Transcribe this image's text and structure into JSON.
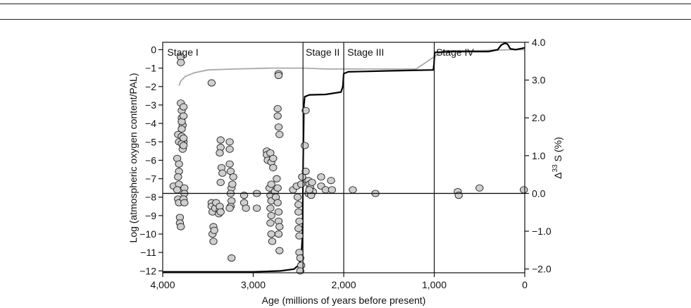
{
  "chart_data": {
    "type": "scatter",
    "xlabel": "Age (millions of years before present)",
    "ylabel_left": "Log (atmospheric oxygen content/PAL)",
    "ylabel_right_prefix": "Δ",
    "ylabel_right_sup": "33",
    "ylabel_right_suffix": " S (%)",
    "xlim": [
      4000,
      0
    ],
    "ylim_left": [
      -12.1,
      0.4
    ],
    "ylim_right": [
      -2.1,
      4.0
    ],
    "x_reversed": true,
    "grid": false,
    "x_ticks": [
      {
        "value": 4000,
        "label": "4,000"
      },
      {
        "value": 3000,
        "label": "3,000"
      },
      {
        "value": 2000,
        "label": "2,000"
      },
      {
        "value": 1000,
        "label": "1,000"
      },
      {
        "value": 0,
        "label": "0"
      }
    ],
    "y_left_ticks": [
      {
        "value": 0,
        "label": "0"
      },
      {
        "value": -1,
        "label": "−1"
      },
      {
        "value": -2,
        "label": "−2"
      },
      {
        "value": -3,
        "label": "−3"
      },
      {
        "value": -4,
        "label": "−4"
      },
      {
        "value": -5,
        "label": "−5"
      },
      {
        "value": -6,
        "label": "−6"
      },
      {
        "value": -7,
        "label": "−7"
      },
      {
        "value": -8,
        "label": "−8"
      },
      {
        "value": -9,
        "label": "−9"
      },
      {
        "value": -10,
        "label": "−10"
      },
      {
        "value": -11,
        "label": "−11"
      },
      {
        "value": -12,
        "label": "−12"
      }
    ],
    "y_right_ticks": [
      {
        "value": 4.0,
        "label": "4.0"
      },
      {
        "value": 3.0,
        "label": "3.0"
      },
      {
        "value": 2.0,
        "label": "2.0"
      },
      {
        "value": 1.0,
        "label": "1.0"
      },
      {
        "value": 0.0,
        "label": "0.0"
      },
      {
        "value": -1.0,
        "label": "−1.0"
      },
      {
        "value": -2.0,
        "label": "−2.0"
      }
    ],
    "stage_boundaries": [
      2450,
      2000,
      1000
    ],
    "stages": [
      {
        "label": "Stage I",
        "x": 3950
      },
      {
        "label": "Stage II",
        "x": 2420
      },
      {
        "label": "Stage III",
        "x": 1960
      },
      {
        "label": "Stage IV",
        "x": 980
      }
    ],
    "zero_line_d33s": 0.0,
    "oxygen_curve": [
      [
        4000,
        -12.05
      ],
      [
        3000,
        -12.05
      ],
      [
        2700,
        -12.0
      ],
      [
        2550,
        -11.9
      ],
      [
        2500,
        -11.7
      ],
      [
        2470,
        -11.3
      ],
      [
        2455,
        -10.0
      ],
      [
        2448,
        -6.0
      ],
      [
        2440,
        -3.0
      ],
      [
        2430,
        -2.55
      ],
      [
        2380,
        -2.45
      ],
      [
        2200,
        -2.43
      ],
      [
        2030,
        -2.3
      ],
      [
        2010,
        -2.0
      ],
      [
        2000,
        -1.3
      ],
      [
        1950,
        -1.2
      ],
      [
        1500,
        -1.15
      ],
      [
        1010,
        -1.1
      ],
      [
        1003,
        -0.8
      ],
      [
        995,
        -0.15
      ],
      [
        800,
        -0.1
      ],
      [
        400,
        -0.1
      ],
      [
        300,
        0.0
      ],
      [
        260,
        0.25
      ],
      [
        220,
        0.35
      ],
      [
        190,
        0.3
      ],
      [
        160,
        0.05
      ],
      [
        100,
        0.0
      ],
      [
        0,
        0.1
      ]
    ],
    "gray_curve": [
      [
        3820,
        -1.95
      ],
      [
        3800,
        -1.7
      ],
      [
        3750,
        -1.45
      ],
      [
        3650,
        -1.25
      ],
      [
        3500,
        -1.1
      ],
      [
        3200,
        -1.05
      ],
      [
        2800,
        -1.0
      ],
      [
        2450,
        -1.0
      ],
      [
        2200,
        -1.05
      ],
      [
        2000,
        -1.05
      ],
      [
        1600,
        -1.05
      ],
      [
        1200,
        -1.05
      ],
      [
        900,
        -0.05
      ],
      [
        500,
        -0.05
      ],
      [
        150,
        0.0
      ],
      [
        0,
        0.0
      ]
    ],
    "d33s_points": [
      [
        3880,
        -7.4
      ],
      [
        3830,
        -4.6
      ],
      [
        3820,
        -5.0
      ],
      [
        3840,
        -5.9
      ],
      [
        3820,
        -6.2
      ],
      [
        3820,
        -6.6
      ],
      [
        3830,
        -6.9
      ],
      [
        3820,
        -7.3
      ],
      [
        3840,
        -7.6
      ],
      [
        3830,
        -8.1
      ],
      [
        3820,
        -8.3
      ],
      [
        3810,
        -9.1
      ],
      [
        3810,
        -9.4
      ],
      [
        3800,
        -9.6
      ],
      [
        3800,
        -0.4
      ],
      [
        3800,
        -0.7
      ],
      [
        3800,
        -2.9
      ],
      [
        3790,
        -3.3
      ],
      [
        3790,
        -3.7
      ],
      [
        3780,
        -4.1
      ],
      [
        3790,
        -4.3
      ],
      [
        3790,
        -3.9
      ],
      [
        3770,
        -3.6
      ],
      [
        3770,
        -3.1
      ],
      [
        3790,
        -4.7
      ],
      [
        3770,
        -5.0
      ],
      [
        3790,
        -5.1
      ],
      [
        3780,
        -5.4
      ],
      [
        3770,
        -5.2
      ],
      [
        3770,
        -4.8
      ],
      [
        3760,
        -7.5
      ],
      [
        3760,
        -7.8
      ],
      [
        3770,
        -8.1
      ],
      [
        3760,
        -8.3
      ],
      [
        3460,
        -1.8
      ],
      [
        3460,
        -8.3
      ],
      [
        3460,
        -8.5
      ],
      [
        3450,
        -8.8
      ],
      [
        3440,
        -9.6
      ],
      [
        3450,
        -10.0
      ],
      [
        3440,
        -10.4
      ],
      [
        3430,
        -9.8
      ],
      [
        3420,
        -8.6
      ],
      [
        3410,
        -8.3
      ],
      [
        3380,
        -8.9
      ],
      [
        3370,
        -8.7
      ],
      [
        3370,
        -8.5
      ],
      [
        3360,
        -8.8
      ],
      [
        3360,
        -4.9
      ],
      [
        3360,
        -5.3
      ],
      [
        3370,
        -5.6
      ],
      [
        3350,
        -6.4
      ],
      [
        3340,
        -6.7
      ],
      [
        3360,
        -7.2
      ],
      [
        3260,
        -5.0
      ],
      [
        3260,
        -5.4
      ],
      [
        3260,
        -6.2
      ],
      [
        3250,
        -6.6
      ],
      [
        3240,
        -7.5
      ],
      [
        3250,
        -7.8
      ],
      [
        3240,
        -8.2
      ],
      [
        3250,
        -8.5
      ],
      [
        3260,
        -8.6
      ],
      [
        3240,
        -11.3
      ],
      [
        3230,
        -7.3
      ],
      [
        3220,
        -6.9
      ],
      [
        3100,
        -7.9
      ],
      [
        3100,
        -8.3
      ],
      [
        3080,
        -8.6
      ],
      [
        2960,
        -7.8
      ],
      [
        2960,
        -8.6
      ],
      [
        2850,
        -5.5
      ],
      [
        2850,
        -5.7
      ],
      [
        2840,
        -6.0
      ],
      [
        2810,
        -5.6
      ],
      [
        2800,
        -6.1
      ],
      [
        2780,
        -6.4
      ],
      [
        2780,
        -5.9
      ],
      [
        2820,
        -7.5
      ],
      [
        2810,
        -7.9
      ],
      [
        2800,
        -8.2
      ],
      [
        2810,
        -8.6
      ],
      [
        2800,
        -9.0
      ],
      [
        2810,
        -9.4
      ],
      [
        2800,
        -10.0
      ],
      [
        2790,
        -10.4
      ],
      [
        2800,
        -7.3
      ],
      [
        2760,
        -7.7
      ],
      [
        2750,
        -8.0
      ],
      [
        2720,
        -1.3
      ],
      [
        2720,
        -1.4
      ],
      [
        2730,
        -3.2
      ],
      [
        2730,
        -3.6
      ],
      [
        2720,
        -4.2
      ],
      [
        2710,
        -4.6
      ],
      [
        2740,
        -7.0
      ],
      [
        2730,
        -7.5
      ],
      [
        2730,
        -8.3
      ],
      [
        2720,
        -8.8
      ],
      [
        2720,
        -9.3
      ],
      [
        2710,
        -9.6
      ],
      [
        2720,
        -10.0
      ],
      [
        2710,
        -10.9
      ],
      [
        2560,
        -7.6
      ],
      [
        2520,
        -7.4
      ],
      [
        2510,
        -8.0
      ],
      [
        2500,
        -8.4
      ],
      [
        2500,
        -8.8
      ],
      [
        2490,
        -9.3
      ],
      [
        2500,
        -9.7
      ],
      [
        2490,
        -10.1
      ],
      [
        2490,
        -11.0
      ],
      [
        2480,
        -11.3
      ],
      [
        2470,
        -11.7
      ],
      [
        2480,
        -12.0
      ],
      [
        2470,
        -7.3
      ],
      [
        2460,
        -6.9
      ],
      [
        2420,
        -3.3
      ],
      [
        2430,
        -5.2
      ],
      [
        2420,
        -6.6
      ],
      [
        2390,
        -7.1
      ],
      [
        2380,
        -7.3
      ],
      [
        2370,
        -7.5
      ],
      [
        2350,
        -7.2
      ],
      [
        2340,
        -7.7
      ],
      [
        2390,
        -7.8
      ],
      [
        2360,
        -7.9
      ],
      [
        2380,
        -7.6
      ],
      [
        2250,
        -6.9
      ],
      [
        2250,
        -7.4
      ],
      [
        2200,
        -7.6
      ],
      [
        2140,
        -7.1
      ],
      [
        2130,
        -7.6
      ],
      [
        1900,
        -7.6
      ],
      [
        1650,
        -7.8
      ],
      [
        740,
        -7.7
      ],
      [
        730,
        -7.9
      ],
      [
        500,
        -7.5
      ],
      [
        10,
        -7.6
      ]
    ]
  }
}
